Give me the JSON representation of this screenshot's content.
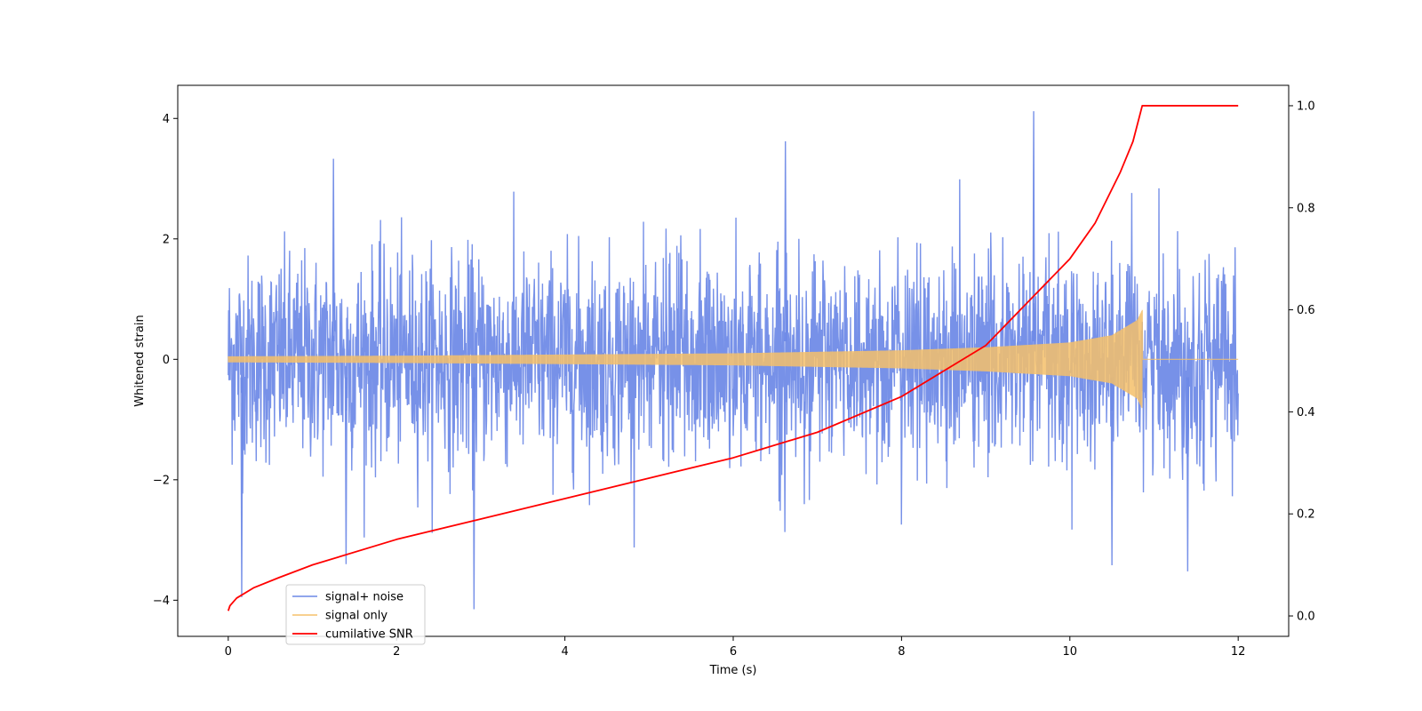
{
  "chart_data": {
    "type": "line",
    "title": "",
    "xlabel": "Time (s)",
    "ylabel": "Whitened strain",
    "y2label": "",
    "xlim": [
      -0.6,
      12.6
    ],
    "ylim": [
      -4.6,
      4.55
    ],
    "y2lim": [
      -0.04,
      1.04
    ],
    "xticks": [
      "0",
      "2",
      "4",
      "6",
      "8",
      "10",
      "12"
    ],
    "yticks": [
      "−4",
      "−2",
      "0",
      "2",
      "4"
    ],
    "y2ticks": [
      "0.0",
      "0.2",
      "0.4",
      "0.6",
      "0.8",
      "1.0"
    ],
    "grid": false,
    "legend_position": "lower-left",
    "series": [
      {
        "name": "signal+ noise",
        "axis": "left",
        "color": "#6b88e6",
        "description_type": "noise",
        "x_range": [
          0,
          12
        ],
        "std": 0.85,
        "notable_peaks": [
          {
            "x": 9.57,
            "y": 4.12
          },
          {
            "x": 6.62,
            "y": 3.62
          },
          {
            "x": 1.25,
            "y": 3.33
          },
          {
            "x": 2.92,
            "y": -4.15
          },
          {
            "x": 0.16,
            "y": -3.95
          },
          {
            "x": 11.4,
            "y": -3.52
          },
          {
            "x": 10.5,
            "y": -3.42
          },
          {
            "x": 1.4,
            "y": -3.4
          }
        ]
      },
      {
        "name": "signal only",
        "axis": "left",
        "color": "#f5c06a",
        "description_type": "chirp",
        "x_range": [
          0,
          12
        ],
        "merger_time": 10.86,
        "envelope": [
          [
            0,
            0.05
          ],
          [
            2,
            0.06
          ],
          [
            4,
            0.08
          ],
          [
            6,
            0.1
          ],
          [
            8,
            0.15
          ],
          [
            9,
            0.2
          ],
          [
            10,
            0.28
          ],
          [
            10.5,
            0.4
          ],
          [
            10.8,
            0.65
          ],
          [
            10.86,
            0.82
          ]
        ]
      },
      {
        "name": "cumilative SNR",
        "axis": "right",
        "color": "#ff0000",
        "x": [
          0,
          0.02,
          0.1,
          0.3,
          0.6,
          1,
          2,
          3,
          4,
          5,
          6,
          7,
          8,
          9,
          10,
          10.3,
          10.6,
          10.75,
          10.86,
          12
        ],
        "values": [
          0.01,
          0.02,
          0.035,
          0.055,
          0.075,
          0.1,
          0.15,
          0.19,
          0.23,
          0.27,
          0.31,
          0.36,
          0.43,
          0.53,
          0.7,
          0.77,
          0.87,
          0.93,
          1.0,
          1.0
        ]
      }
    ]
  }
}
